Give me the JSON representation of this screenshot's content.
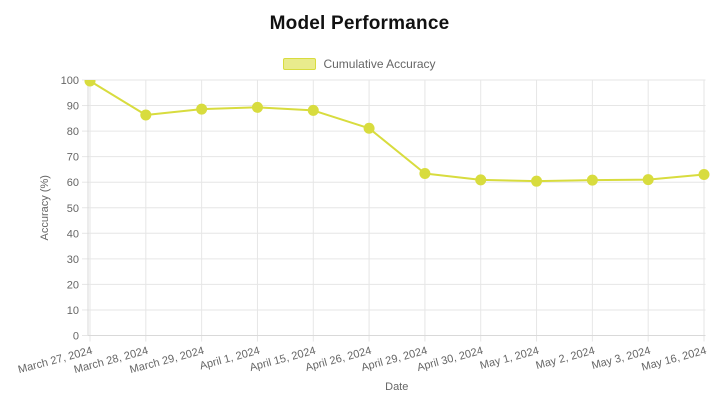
{
  "chart_data": {
    "type": "line",
    "title": "Model Performance",
    "xlabel": "Date",
    "ylabel": "Accuracy (%)",
    "categories": [
      "March 27, 2024",
      "March 28, 2024",
      "March 29, 2024",
      "April 1, 2024",
      "April 15, 2024",
      "April 26, 2024",
      "April 29, 2024",
      "April 30, 2024",
      "May 1, 2024",
      "May 2, 2024",
      "May 3, 2024",
      "May 16, 2024"
    ],
    "series": [
      {
        "name": "Cumulative Accuracy",
        "values": [
          99.6,
          86.3,
          88.6,
          89.3,
          88.1,
          81.1,
          63.4,
          60.9,
          60.4,
          60.8,
          61.0,
          63.0
        ]
      }
    ],
    "ylim": [
      0,
      100
    ],
    "y_ticks": [
      0,
      10,
      20,
      30,
      40,
      50,
      60,
      70,
      80,
      90,
      100
    ],
    "grid": true,
    "legend_position": "top",
    "x_label_rotation_deg": -15,
    "colors": {
      "line": "#d8dc3e",
      "point": "#d8dc3e",
      "legend_fill": "#e9eb8c",
      "grid": "#e6e6e6",
      "axis_border": "#d9d9d9",
      "tick_label": "#666666",
      "axis_title": "#666666",
      "title": "#111111",
      "background": "#ffffff"
    }
  }
}
